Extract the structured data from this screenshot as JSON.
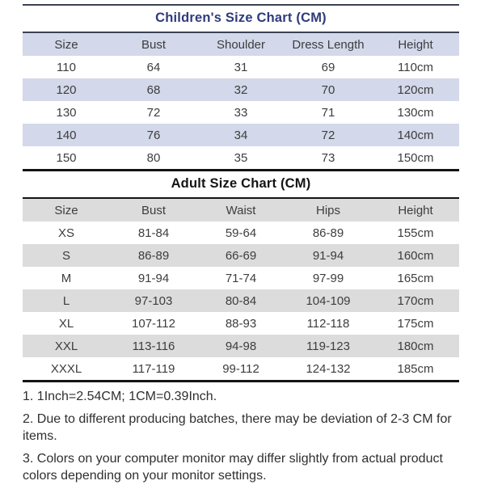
{
  "children_chart": {
    "title": "Children's Size Chart (CM)",
    "columns": [
      "Size",
      "Bust",
      "Shoulder",
      "Dress Length",
      "Height"
    ],
    "rows": [
      [
        "110",
        "64",
        "31",
        "69",
        "110cm"
      ],
      [
        "120",
        "68",
        "32",
        "70",
        "120cm"
      ],
      [
        "130",
        "72",
        "33",
        "71",
        "130cm"
      ],
      [
        "140",
        "76",
        "34",
        "72",
        "140cm"
      ],
      [
        "150",
        "80",
        "35",
        "73",
        "150cm"
      ]
    ]
  },
  "adult_chart": {
    "title": "Adult Size Chart (CM)",
    "columns": [
      "Size",
      "Bust",
      "Waist",
      "Hips",
      "Height"
    ],
    "rows": [
      [
        "XS",
        "81-84",
        "59-64",
        "86-89",
        "155cm"
      ],
      [
        "S",
        "86-89",
        "66-69",
        "91-94",
        "160cm"
      ],
      [
        "M",
        "91-94",
        "71-74",
        "97-99",
        "165cm"
      ],
      [
        "L",
        "97-103",
        "80-84",
        "104-109",
        "170cm"
      ],
      [
        "XL",
        "107-112",
        "88-93",
        "112-118",
        "175cm"
      ],
      [
        "XXL",
        "113-116",
        "94-98",
        "119-123",
        "180cm"
      ],
      [
        "XXXL",
        "117-119",
        "99-112",
        "124-132",
        "185cm"
      ]
    ]
  },
  "notes": [
    "1. 1Inch=2.54CM; 1CM=0.39Inch.",
    "2. Due to different producing batches, there may be deviation of 2-3 CM for items.",
    "3. Colors on your computer monitor may differ slightly from actual product colors depending on your monitor settings."
  ],
  "colors": {
    "children_accent_row": "#d3d8ea",
    "children_title_text": "#2f3b7a",
    "children_rule": "#3a4254",
    "adult_accent_row": "#dcdcdc",
    "adult_rule": "#141414",
    "body_text": "#3d3d3d"
  }
}
